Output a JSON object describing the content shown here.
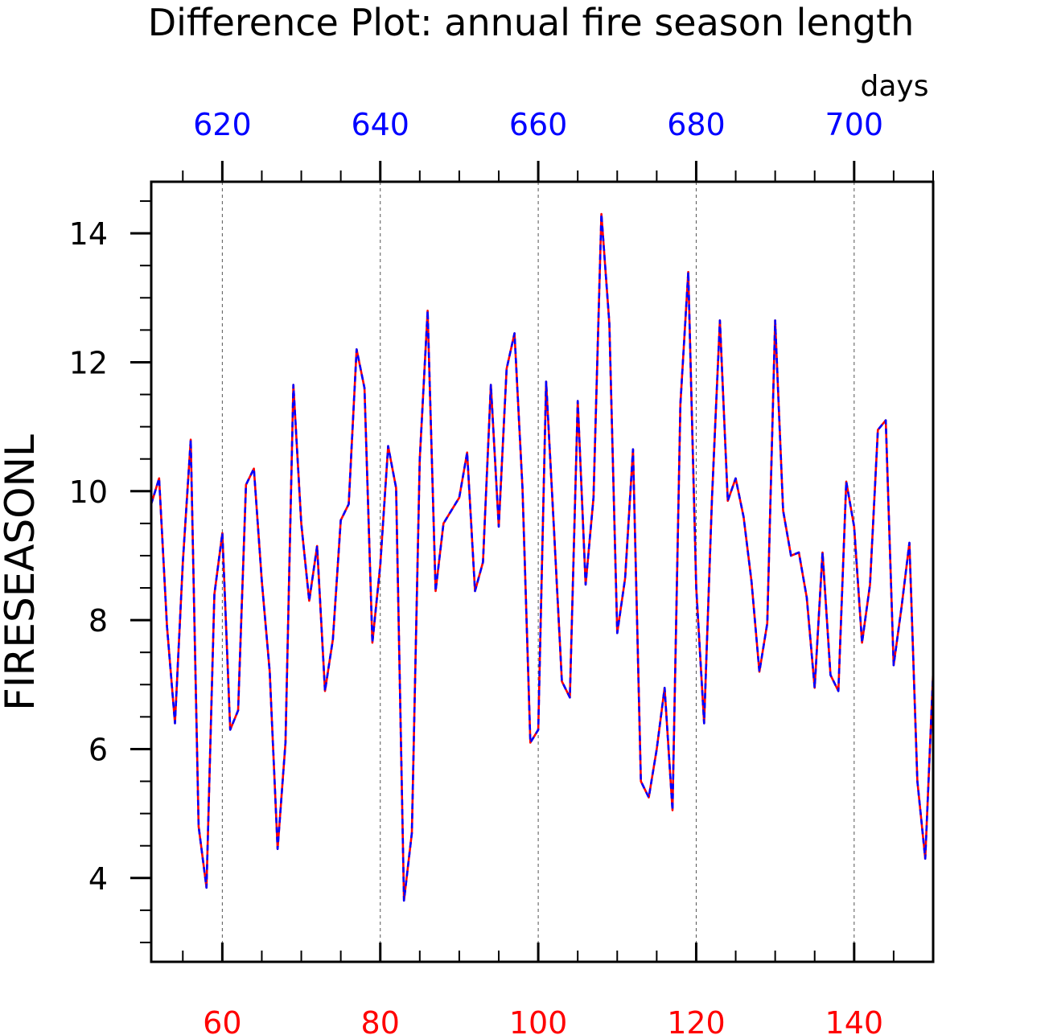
{
  "chart_data": {
    "type": "line",
    "title": "Difference Plot: annual fire season length",
    "ylabel": "FIRESEASONL",
    "top_axis_unit": "days",
    "xlim": [
      51,
      150
    ],
    "ylim": [
      2.7,
      14.8
    ],
    "bottom_ticks": [
      60,
      80,
      100,
      120,
      140
    ],
    "top_ticks": [
      620,
      640,
      660,
      680,
      700
    ],
    "top_offset": 560,
    "y_ticks": [
      4,
      6,
      8,
      10,
      12,
      14
    ],
    "grid": "dashed vertical lines at major x ticks",
    "colors": {
      "bottom_tick_labels": "#ff0000",
      "top_tick_labels": "#0000ff",
      "series_1": "#ff0000",
      "series_2": "#0000ff"
    },
    "x": [
      51,
      52,
      53,
      54,
      55,
      56,
      57,
      58,
      59,
      60,
      61,
      62,
      63,
      64,
      65,
      66,
      67,
      68,
      69,
      70,
      71,
      72,
      73,
      74,
      75,
      76,
      77,
      78,
      79,
      80,
      81,
      82,
      83,
      84,
      85,
      86,
      87,
      88,
      89,
      90,
      91,
      92,
      93,
      94,
      95,
      96,
      97,
      98,
      99,
      100,
      101,
      102,
      103,
      104,
      105,
      106,
      107,
      108,
      109,
      110,
      111,
      112,
      113,
      114,
      115,
      116,
      117,
      118,
      119,
      120,
      121,
      122,
      123,
      124,
      125,
      126,
      127,
      128,
      129,
      130,
      131,
      132,
      133,
      134,
      135,
      136,
      137,
      138,
      139,
      140,
      141,
      142,
      143,
      144,
      145,
      146,
      147,
      148,
      149,
      150
    ],
    "series": [
      {
        "style": "solid",
        "values": [
          9.8,
          10.2,
          7.9,
          6.4,
          8.9,
          10.8,
          4.8,
          3.85,
          8.4,
          9.35,
          6.3,
          6.6,
          10.1,
          10.35,
          8.6,
          7.2,
          4.45,
          6.1,
          11.65,
          9.5,
          8.3,
          9.15,
          6.9,
          7.7,
          9.55,
          9.8,
          12.2,
          11.6,
          7.65,
          8.85,
          10.7,
          10.05,
          3.65,
          4.7,
          10.5,
          12.8,
          8.45,
          9.5,
          9.7,
          9.9,
          10.6,
          8.45,
          8.9,
          11.65,
          9.45,
          11.9,
          12.45,
          10.05,
          6.1,
          6.3,
          11.7,
          9.4,
          7.05,
          6.8,
          11.4,
          8.55,
          9.9,
          14.3,
          12.6,
          7.8,
          8.65,
          10.65,
          5.5,
          5.25,
          6.0,
          6.95,
          5.05,
          11.35,
          13.4,
          8.5,
          6.4,
          9.9,
          12.65,
          9.85,
          10.2,
          9.6,
          8.6,
          7.2,
          7.95,
          12.65,
          9.7,
          9.0,
          9.05,
          8.35,
          6.95,
          9.05,
          7.15,
          6.9,
          10.15,
          9.45,
          7.65,
          8.55,
          10.95,
          11.1,
          7.3,
          8.2,
          9.2,
          5.5,
          4.3,
          7.2
        ]
      },
      {
        "style": "dashed",
        "values": [
          9.8,
          10.2,
          7.9,
          6.4,
          8.9,
          10.8,
          4.8,
          3.85,
          8.4,
          9.35,
          6.3,
          6.6,
          10.1,
          10.35,
          8.6,
          7.2,
          4.45,
          6.1,
          11.65,
          9.5,
          8.3,
          9.15,
          6.9,
          7.7,
          9.55,
          9.8,
          12.2,
          11.6,
          7.65,
          8.85,
          10.7,
          10.05,
          3.65,
          4.7,
          10.5,
          12.8,
          8.45,
          9.5,
          9.7,
          9.9,
          10.6,
          8.45,
          8.9,
          11.65,
          9.45,
          11.9,
          12.45,
          10.05,
          6.1,
          6.3,
          11.7,
          9.4,
          7.05,
          6.8,
          11.4,
          8.55,
          9.9,
          14.3,
          12.6,
          7.8,
          8.65,
          10.65,
          5.5,
          5.25,
          6.0,
          6.95,
          5.05,
          11.35,
          13.4,
          8.5,
          6.4,
          9.9,
          12.65,
          9.85,
          10.2,
          9.6,
          8.6,
          7.2,
          7.95,
          12.65,
          9.7,
          9.0,
          9.05,
          8.35,
          6.95,
          9.05,
          7.15,
          6.9,
          10.15,
          9.45,
          7.65,
          8.55,
          10.95,
          11.1,
          7.3,
          8.2,
          9.2,
          5.5,
          4.3,
          7.2
        ]
      }
    ]
  }
}
